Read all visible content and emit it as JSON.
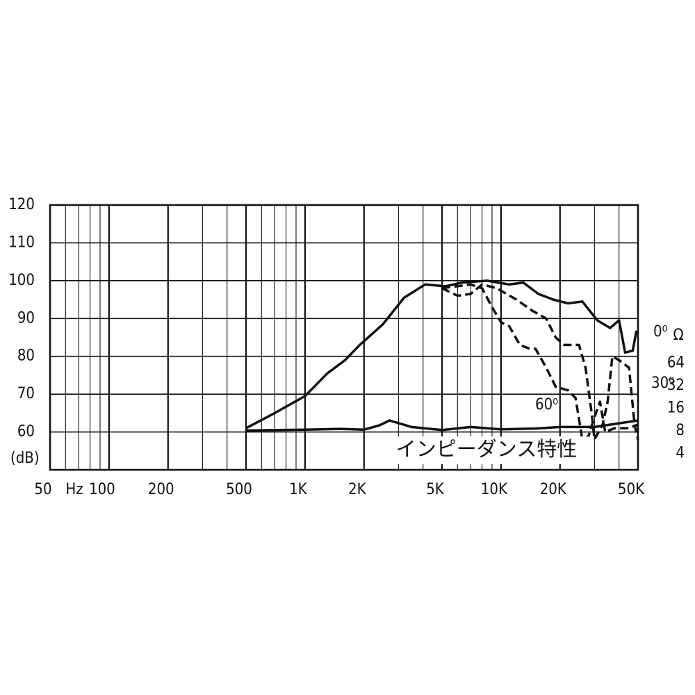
{
  "chart_data": {
    "type": "line",
    "x_unit_label": "Hz",
    "y_label": "(dB)",
    "y2_label": "Ω",
    "xscale": "log",
    "xlim": [
      50,
      50000
    ],
    "xticks": [
      50,
      100,
      200,
      500,
      {
        "value": 1000,
        "label": "1K"
      },
      {
        "value": 2000,
        "label": "2K"
      },
      {
        "value": 5000,
        "label": "5K"
      },
      {
        "value": 10000,
        "label": "10K"
      },
      {
        "value": 20000,
        "label": "20K"
      },
      {
        "value": 50000,
        "label": "50K"
      }
    ],
    "xgrid": [
      60,
      70,
      80,
      90,
      300,
      400,
      600,
      700,
      800,
      900,
      3000,
      4000,
      6000,
      7000,
      8000,
      9000,
      30000,
      40000
    ],
    "ylim": [
      50,
      120
    ],
    "yticks": [
      60,
      70,
      80,
      90,
      100,
      110,
      120
    ],
    "y2scale": "log",
    "y2lim": [
      2.42,
      8192
    ],
    "y2ticks": [
      4,
      8,
      16,
      32,
      64
    ],
    "grid": true,
    "series": [
      {
        "name": "0⁰",
        "color": "#111111",
        "style": "solid",
        "x": [
          500,
          700,
          1000,
          1300,
          1600,
          1900,
          2500,
          3200,
          4100,
          5200,
          6300,
          8500,
          11000,
          13000,
          15500,
          18500,
          22000,
          26000,
          31000,
          36000,
          40000,
          43000,
          47000,
          49000,
          50000
        ],
        "values": [
          61,
          65,
          69.5,
          75.5,
          79,
          83,
          88.5,
          95.5,
          99,
          98.5,
          99.5,
          100,
          99,
          99.5,
          96.5,
          95,
          94,
          94.5,
          89.5,
          87.5,
          89.5,
          81,
          81.5,
          86.5,
          86
        ]
      },
      {
        "name": "30⁰",
        "color": "#111111",
        "style": "dashed",
        "x": [
          5000,
          6000,
          7000,
          8000,
          9500,
          12000,
          14500,
          17000,
          19000,
          21000,
          25000,
          27000,
          29000,
          30000,
          33000,
          35000,
          37000,
          40000,
          45000,
          48000,
          50000
        ],
        "values": [
          98,
          96,
          96.5,
          99,
          98,
          95,
          92,
          90,
          85,
          83,
          83,
          77,
          65,
          58,
          62,
          68,
          80,
          79,
          77,
          62,
          58
        ]
      },
      {
        "name": "60⁰",
        "color": "#111111",
        "style": "dashed",
        "x": [
          5000,
          7000,
          8000,
          9000,
          10000,
          11000,
          12500,
          14000,
          15000,
          17000,
          19000,
          22000,
          24000,
          26000,
          28000,
          30000,
          32000,
          34000,
          38000,
          45000,
          50000
        ],
        "values": [
          98,
          99,
          98,
          93,
          89,
          88,
          83,
          82,
          82,
          77,
          72,
          71,
          69,
          58,
          59,
          64,
          68,
          60,
          61,
          61,
          62
        ]
      },
      {
        "name": "インピーダンス特性",
        "color": "#111111",
        "style": "solid",
        "axis": "y2",
        "x": [
          500,
          1000,
          1500,
          2000,
          2400,
          2700,
          3500,
          5000,
          7000,
          10000,
          15000,
          20000,
          30000,
          50000
        ],
        "values": [
          8.1,
          8.3,
          8.5,
          8.3,
          9.5,
          11,
          9,
          8.2,
          9,
          8.4,
          8.6,
          9,
          9,
          11
        ]
      }
    ]
  }
}
